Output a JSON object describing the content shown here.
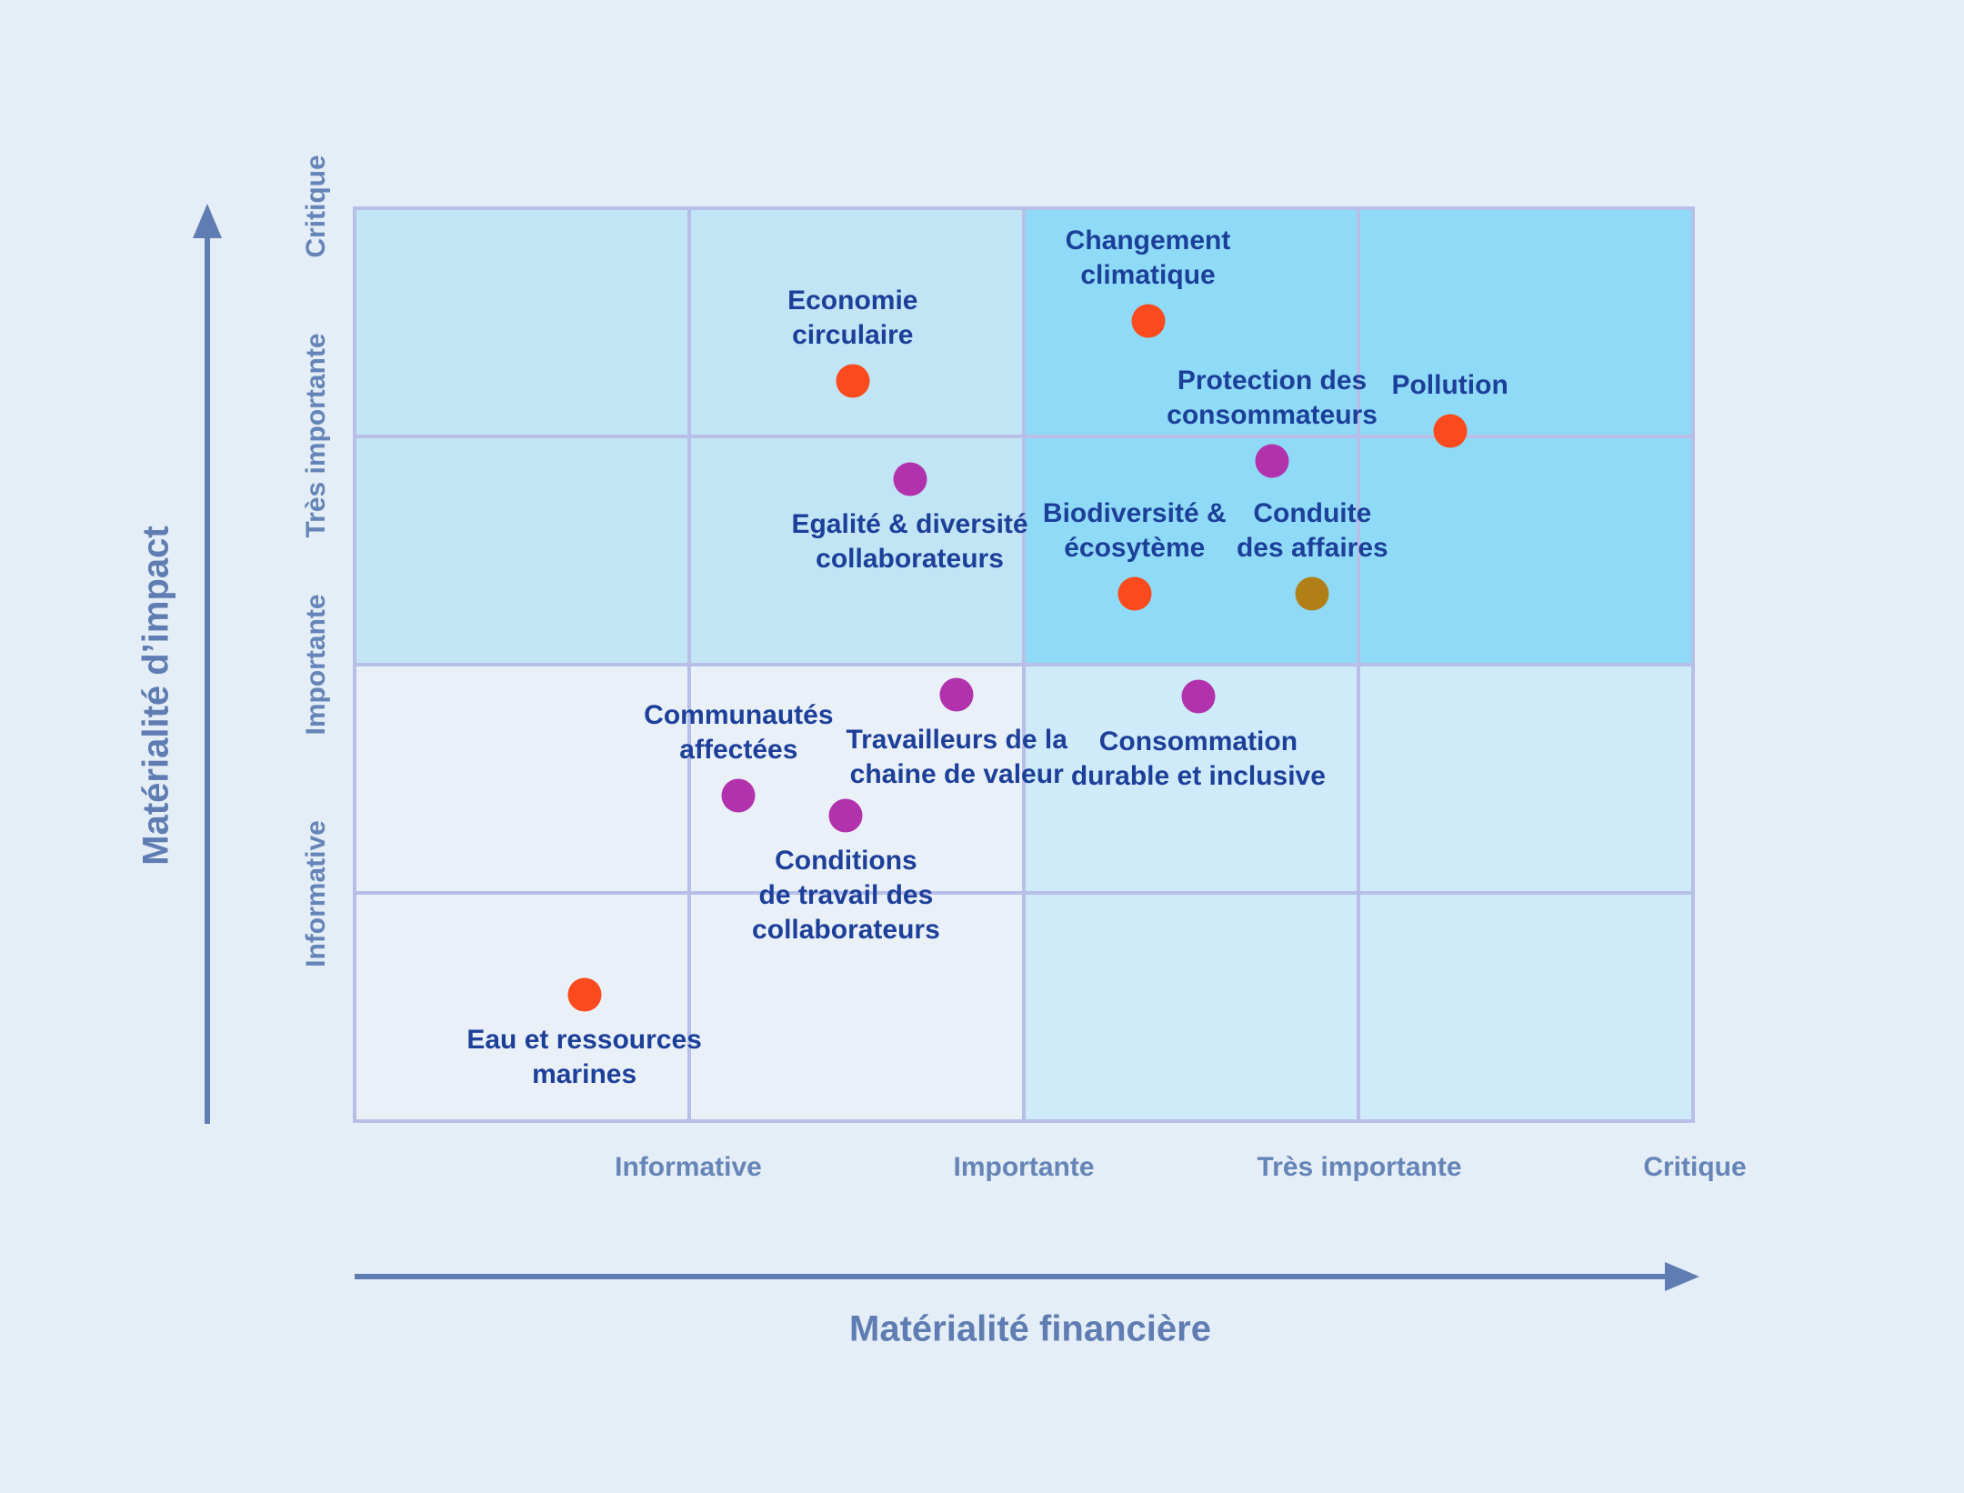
{
  "colors": {
    "background": "#e5eef6",
    "grid_line": "#b7bfe8",
    "quadrants": {
      "top_left": "#c1e5f4",
      "top_right": "#8fdbf7",
      "bottom_left": "#eaf0f7",
      "bottom_right": "#cfeaf8"
    },
    "point_label_text": "#1c3f99",
    "axis_tick_text": "#6584b8",
    "axis_title_text": "#5f7db3",
    "arrow": "#5f7db3",
    "dot_orange": "#fb4a1d",
    "dot_magenta": "#b232ae",
    "dot_gold": "#b17f18"
  },
  "chart_data": {
    "type": "scatter",
    "title": "",
    "x_axis": {
      "title": "Matérialité financière",
      "tick_labels": [
        "Informative",
        "Importante",
        "Très importante",
        "Critique"
      ],
      "range": [
        0,
        4
      ]
    },
    "y_axis": {
      "title": "Matérialité d’impact",
      "tick_labels": [
        "Informative",
        "Importante",
        "Très importante",
        "Critique"
      ],
      "range": [
        0,
        4
      ]
    },
    "grid": {
      "rows": 4,
      "cols": 4,
      "legend": "none"
    },
    "points": [
      {
        "label": "Changement\nclimatique",
        "x": 2.37,
        "y": 3.5,
        "color": "orange",
        "label_pos": "above"
      },
      {
        "label": "Economie\ncirculaire",
        "x": 1.49,
        "y": 3.24,
        "color": "orange",
        "label_pos": "above"
      },
      {
        "label": "Pollution",
        "x": 3.27,
        "y": 3.02,
        "color": "orange",
        "label_pos": "above"
      },
      {
        "label": "Protection des\nconsommateurs",
        "x": 2.74,
        "y": 2.89,
        "color": "magenta",
        "label_pos": "above"
      },
      {
        "label": "Egalité & diversité\ncollaborateurs",
        "x": 1.66,
        "y": 2.81,
        "color": "magenta",
        "label_pos": "below"
      },
      {
        "label": "Biodiversité &\nécosytème",
        "x": 2.33,
        "y": 2.31,
        "color": "orange",
        "label_pos": "above"
      },
      {
        "label": "Conduite\ndes affaires",
        "x": 2.86,
        "y": 2.31,
        "color": "gold",
        "label_pos": "above"
      },
      {
        "label": "Travailleurs de la\nchaine de valeur",
        "x": 1.8,
        "y": 1.87,
        "color": "magenta",
        "label_pos": "below"
      },
      {
        "label": "Consommation\ndurable et inclusive",
        "x": 2.52,
        "y": 1.86,
        "color": "magenta",
        "label_pos": "below"
      },
      {
        "label": "Communautés\naffectées",
        "x": 1.15,
        "y": 1.43,
        "color": "magenta",
        "label_pos": "above"
      },
      {
        "label": "Conditions\nde travail des\ncollaborateurs",
        "x": 1.47,
        "y": 1.34,
        "color": "magenta",
        "label_pos": "below"
      },
      {
        "label": "Eau et ressources\nmarines",
        "x": 0.69,
        "y": 0.56,
        "color": "orange",
        "label_pos": "below"
      }
    ]
  }
}
